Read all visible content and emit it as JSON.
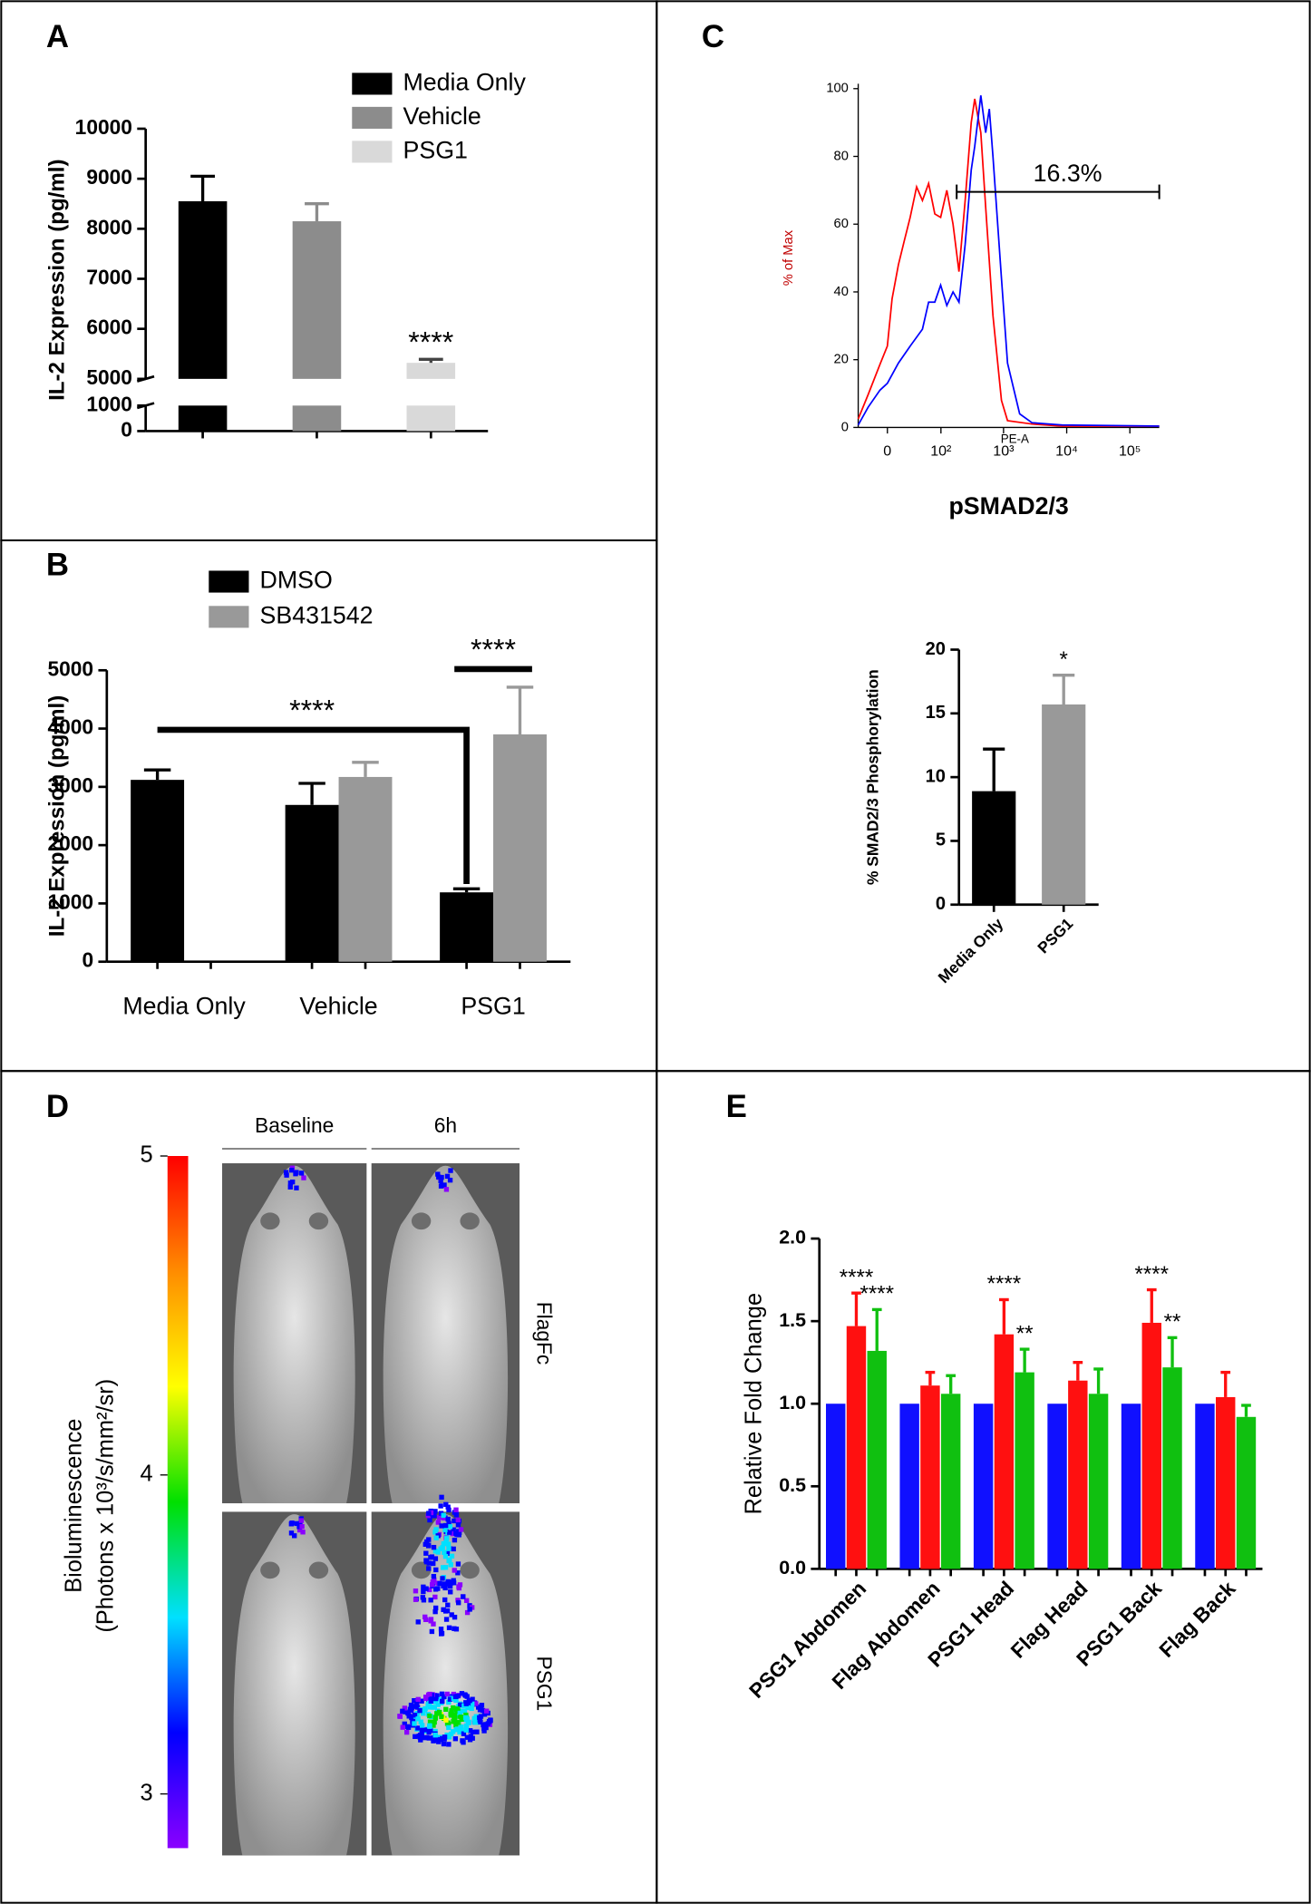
{
  "chart_data": [
    {
      "panel": "A",
      "type": "bar",
      "ylabel": "IL-2 Expression (pg/ml)",
      "categories": [
        null
      ],
      "ylim": [
        0,
        10000
      ],
      "axis_break": [
        1000,
        5000
      ],
      "yticks": [
        0,
        1000,
        5000,
        6000,
        7000,
        8000,
        9000,
        10000
      ],
      "legend": "top-right",
      "series": [
        {
          "name": "Media Only",
          "color": "#000000",
          "values": [
            8550
          ],
          "errors": [
            500
          ]
        },
        {
          "name": "Vehicle",
          "color": "#8c8c8c",
          "values": [
            8150
          ],
          "errors": [
            350
          ]
        },
        {
          "name": "PSG1",
          "color": "#d9d9d9",
          "values": [
            5320
          ],
          "errors": [
            70
          ],
          "annotations": [
            "****"
          ]
        }
      ]
    },
    {
      "panel": "B",
      "type": "bar",
      "ylabel": "IL-2 Expression (pg/ml)",
      "categories": [
        "Media Only",
        "Vehicle",
        "PSG1"
      ],
      "ylim": [
        0,
        5000
      ],
      "yticks": [
        0,
        1000,
        2000,
        3000,
        4000,
        5000
      ],
      "legend": "top-left",
      "series": [
        {
          "name": "DMSO",
          "color": "#000000",
          "values": [
            3120,
            2690,
            1190
          ],
          "errors": [
            170,
            370,
            60
          ]
        },
        {
          "name": "SB431542",
          "color": "#999999",
          "values": [
            null,
            3170,
            3900
          ],
          "errors": [
            null,
            250,
            810
          ]
        }
      ],
      "annotations": [
        "****",
        "****"
      ]
    },
    {
      "panel": "C",
      "type": "line",
      "title": "pSMAD2/3",
      "xlabel": "PE-A",
      "ylabel": "% of Max",
      "xscale": "arcsinh",
      "xlim": [
        -37,
        292000
      ],
      "xticks": [
        0,
        {
          "value": 100,
          "label": "10²"
        },
        {
          "value": 1000,
          "label": "10³"
        },
        {
          "value": 10000,
          "label": "10⁴"
        },
        {
          "value": 100000,
          "label": "10⁵"
        }
      ],
      "ylim": [
        0,
        100
      ],
      "yticks": [
        0,
        20,
        40,
        60,
        80,
        100
      ],
      "series": [
        {
          "color": "#ff0000",
          "x": [
            -37,
            -22,
            -8,
            0,
            5,
            12,
            19,
            27,
            37,
            48,
            62,
            79,
            99,
            125,
            157,
            196,
            246,
            307,
            350,
            437,
            522,
            680,
            928,
            1157,
            2810,
            8470,
            292000
          ],
          "values": [
            2.5,
            9.7,
            18.6,
            24,
            38,
            48,
            55,
            62,
            71,
            67,
            72,
            63,
            62,
            70,
            60,
            46,
            67,
            90,
            97,
            87,
            65,
            33,
            8,
            2,
            1,
            0.4,
            0.4
          ]
        },
        {
          "color": "#0000ff",
          "x": [
            -37,
            -22,
            -8,
            0,
            12,
            27,
            48,
            62,
            79,
            99,
            125,
            157,
            196,
            246,
            307,
            350,
            437,
            522,
            595,
            680,
            928,
            1157,
            1800,
            2810,
            8470,
            292000
          ],
          "values": [
            0.7,
            6,
            11,
            13,
            19,
            24,
            29,
            37,
            37,
            42,
            36,
            40,
            37,
            54,
            76,
            83,
            98,
            87,
            94,
            80,
            44,
            19,
            4,
            1.4,
            0.7,
            0.4
          ]
        }
      ],
      "gate": {
        "label": "16.3%",
        "range": [
          180,
          292000
        ]
      }
    },
    {
      "type": "bar",
      "ylabel": "% SMAD2/3 Phosphorylation",
      "categories": [
        "Media Only",
        "PSG1"
      ],
      "ylim": [
        0,
        20
      ],
      "yticks": [
        0,
        5,
        10,
        15,
        20
      ],
      "colors": [
        "#000000",
        "#999999"
      ],
      "values": [
        8.9,
        15.7
      ],
      "errors": [
        3.3,
        2.3
      ],
      "annotations": [
        null,
        "*"
      ]
    },
    {
      "panel": "D",
      "type": "image",
      "columns": [
        "Baseline",
        "6h"
      ],
      "rows": [
        "FlagFc",
        "PSG1"
      ],
      "colorbar_label": [
        "Bioluminescence",
        "(Photons x 10³/s/mm²/sr)"
      ],
      "clim": [
        2.83,
        5
      ],
      "cticks": [
        3,
        4,
        5
      ],
      "colormap": [
        "#ff0000",
        "#ff8c00",
        "#ffff00",
        "#00e000",
        "#00e0ff",
        "#0000ff",
        "#8a00ff"
      ]
    },
    {
      "panel": "E",
      "type": "bar",
      "ylabel": "Relative Fold Change",
      "categories": [
        "PSG1 Abdomen",
        "Flag Abdomen",
        "PSG1 Head",
        "Flag Head",
        "PSG1 Back",
        "Flag Back"
      ],
      "ylim": [
        0,
        2
      ],
      "yticks": [
        {
          "value": 0,
          "label": "0.0"
        },
        {
          "value": 0.5,
          "label": "0.5"
        },
        {
          "value": 1,
          "label": "1.0"
        },
        {
          "value": 1.5,
          "label": "1.5"
        },
        {
          "value": 2,
          "label": "2.0"
        }
      ],
      "series": [
        {
          "color": "#1010ff",
          "values": [
            1,
            1,
            1,
            1,
            1,
            1
          ]
        },
        {
          "color": "#ff1010",
          "values": [
            1.47,
            1.11,
            1.42,
            1.14,
            1.49,
            1.04
          ],
          "errors": [
            0.2,
            0.08,
            0.21,
            0.11,
            0.2,
            0.15
          ],
          "annotations": [
            "****",
            null,
            "****",
            null,
            "****",
            null
          ]
        },
        {
          "color": "#10c010",
          "values": [
            1.32,
            1.06,
            1.19,
            1.06,
            1.22,
            0.92
          ],
          "errors": [
            0.25,
            0.11,
            0.14,
            0.15,
            0.18,
            0.07
          ],
          "annotations": [
            "****",
            null,
            "**",
            null,
            "**",
            null
          ]
        }
      ]
    }
  ]
}
